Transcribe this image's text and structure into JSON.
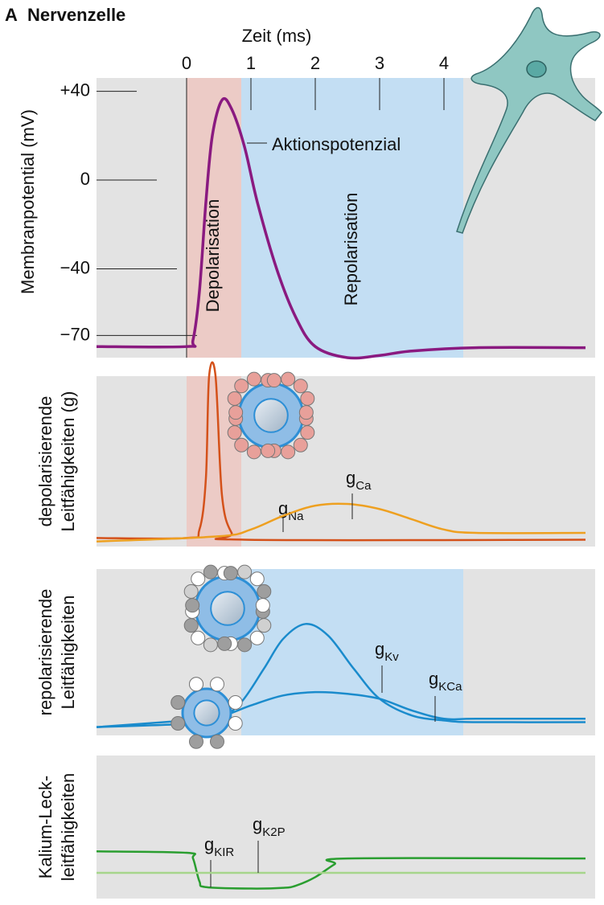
{
  "figure": {
    "label": "A",
    "title": "Nervenzelle"
  },
  "chart_data": [
    {
      "type": "line",
      "xlabel": "Zeit (ms)",
      "ylabel": [
        "Membranpotential (mV)"
      ],
      "xlim": [
        -1.4,
        6.35
      ],
      "xticks": [
        0,
        1,
        2,
        3,
        4
      ],
      "ylim": [
        -80,
        46
      ],
      "yticks": [
        {
          "value": 40,
          "label": "+40"
        },
        0,
        {
          "value": -40,
          "label": "−40"
        },
        {
          "value": -70,
          "label": "−70"
        }
      ],
      "regions": [
        {
          "label": "Depolarisation",
          "from": 0,
          "to": 0.85,
          "color": "#eccbc6"
        },
        {
          "label": "Repolarisation",
          "from": 0.85,
          "to": 4.3,
          "color": "#c3def3"
        }
      ],
      "series": [
        {
          "name": "Aktionspotenzial",
          "color": "#8a1a80",
          "x": [
            -1.4,
            0,
            0.1,
            0.2,
            0.3,
            0.4,
            0.55,
            0.7,
            0.9,
            1.1,
            1.4,
            1.7,
            2.0,
            2.5,
            3.0,
            3.5,
            4.5,
            6.2
          ],
          "values": [
            -75,
            -75,
            -72,
            -50,
            -10,
            20,
            36,
            32,
            15,
            -10,
            -40,
            -62,
            -75,
            -80,
            -79,
            -77,
            -75.5,
            -75.5
          ]
        }
      ]
    },
    {
      "type": "line",
      "ylabel": [
        "depolarisierende",
        "Leitfähigkeiten (g)"
      ],
      "xlim": [
        -1.4,
        6.35
      ],
      "ylim": [
        0,
        100
      ],
      "regions": [
        {
          "from": 0,
          "to": 0.85,
          "color": "#eccbc6"
        }
      ],
      "series": [
        {
          "name": {
            "text": "g",
            "sub": "Na"
          },
          "color": "#d4511a",
          "x": [
            -1.4,
            0,
            0.2,
            0.3,
            0.35,
            0.45,
            0.55,
            0.7,
            0.9,
            6.2
          ],
          "values": [
            5,
            5,
            10,
            40,
            100,
            100,
            30,
            8,
            4,
            4
          ]
        },
        {
          "name": {
            "text": "g",
            "sub": "Ca"
          },
          "color": "#eea020",
          "x": [
            -1.4,
            0.5,
            1,
            1.5,
            2,
            2.5,
            3,
            3.5,
            4,
            4.5,
            6.2
          ],
          "values": [
            3,
            6,
            10,
            18,
            24,
            25,
            22,
            16,
            10,
            8,
            8
          ]
        }
      ]
    },
    {
      "type": "line",
      "ylabel": [
        "repolarisierende",
        "Leitfähigkeiten"
      ],
      "xlim": [
        -1.4,
        6.35
      ],
      "ylim": [
        0,
        100
      ],
      "regions": [
        {
          "from": 0.85,
          "to": 4.3,
          "color": "#c3def3"
        }
      ],
      "series": [
        {
          "name": {
            "text": "g",
            "sub": "Kv"
          },
          "color": "#1a8bcc",
          "x": [
            -1.4,
            0,
            0.5,
            0.85,
            1.2,
            1.5,
            1.85,
            2.2,
            2.6,
            3.0,
            3.5,
            4,
            4.5,
            6.2
          ],
          "values": [
            5,
            7,
            10,
            20,
            40,
            58,
            67,
            60,
            40,
            22,
            12,
            9,
            8,
            8
          ]
        },
        {
          "name": {
            "text": "g",
            "sub": "KCa"
          },
          "color": "#1a8bcc",
          "x": [
            -1.4,
            0,
            0.5,
            1,
            1.5,
            2,
            2.5,
            3,
            3.5,
            4,
            4.5,
            6.2
          ],
          "values": [
            5,
            9,
            11,
            18,
            24,
            26,
            25,
            22,
            15,
            10,
            10,
            10
          ]
        }
      ]
    },
    {
      "type": "line",
      "ylabel": [
        "Kalium-Leck-",
        "leitfähigkeiten"
      ],
      "xlim": [
        -1.4,
        6.35
      ],
      "ylim": [
        0,
        100
      ],
      "series": [
        {
          "name": {
            "text": "g",
            "sub": "KIR"
          },
          "color": "#2a9e30",
          "x": [
            -1.4,
            0,
            0.1,
            0.2,
            0.3,
            1,
            1.5,
            1.7,
            2,
            2.3,
            2.5,
            6.2
          ],
          "values": [
            33,
            32,
            28,
            12,
            8,
            7,
            7.5,
            9,
            15,
            24,
            28,
            28
          ]
        },
        {
          "name": {
            "text": "g",
            "sub": "K2P"
          },
          "color": "#a6d58c",
          "x": [
            -1.4,
            6.2
          ],
          "values": [
            18,
            18
          ]
        }
      ]
    }
  ]
}
